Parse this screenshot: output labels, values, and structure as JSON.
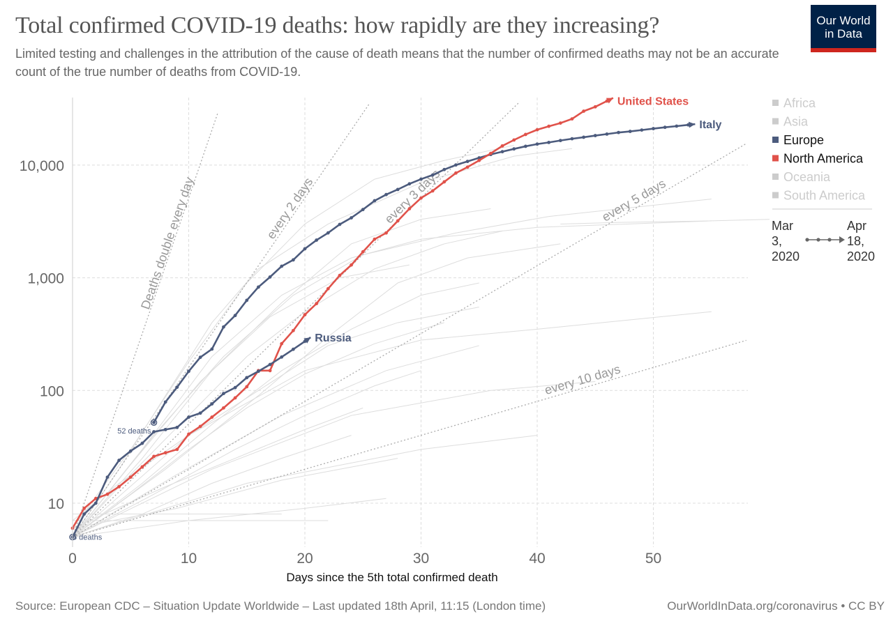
{
  "header": {
    "title": "Total confirmed COVID-19 deaths: how rapidly are they increasing?",
    "subtitle": "Limited testing and challenges in the attribution of the cause of death means that the number of confirmed deaths may not be an accurate count of the true number of deaths from COVID-19.",
    "logo_text": "Our World in Data"
  },
  "footer": {
    "source": "Source: European CDC – Situation Update Worldwide – Last updated 18th April, 11:15 (London time)",
    "credit": "OurWorldInData.org/coronavirus • CC BY"
  },
  "legend": {
    "items": [
      {
        "label": "Africa",
        "color": "#cccccc",
        "active": false
      },
      {
        "label": "Asia",
        "color": "#cccccc",
        "active": false
      },
      {
        "label": "Europe",
        "color": "#4c5b7d",
        "active": true
      },
      {
        "label": "North America",
        "color": "#e0524a",
        "active": true
      },
      {
        "label": "Oceania",
        "color": "#cccccc",
        "active": false
      },
      {
        "label": "South America",
        "color": "#cccccc",
        "active": false
      }
    ],
    "time_start": [
      "Mar",
      "3,",
      "2020"
    ],
    "time_end": [
      "Apr",
      "18,",
      "2020"
    ]
  },
  "chart_data": {
    "type": "line",
    "title": "Total confirmed COVID-19 deaths: how rapidly are they increasing?",
    "xlabel": "Days since the 5th total confirmed death",
    "ylabel": "",
    "xlim": [
      0,
      58
    ],
    "ylim": [
      4.1,
      40000
    ],
    "y_scale": "log",
    "x_ticks": [
      "0",
      "10",
      "20",
      "30",
      "40",
      "50"
    ],
    "y_ticks": [
      "10",
      "100",
      "1,000",
      "10,000"
    ],
    "y_tick_values": [
      10,
      100,
      1000,
      10000
    ],
    "x_tick_values": [
      0,
      10,
      20,
      30,
      40,
      50
    ],
    "grid": true,
    "legend_position": "right",
    "series": [
      {
        "name": "Italy",
        "color": "#4c5b7d",
        "start_label": "52 deaths",
        "x": [
          7,
          8,
          9,
          10,
          11,
          12,
          13,
          14,
          15,
          16,
          17,
          18,
          19,
          20,
          21,
          22,
          23,
          24,
          25,
          26,
          27,
          28,
          29,
          30,
          31,
          32,
          33,
          34,
          35,
          36,
          37,
          38,
          39,
          40,
          41,
          42,
          43,
          44,
          45,
          46,
          47,
          48,
          49,
          50,
          51,
          52,
          53
        ],
        "y": [
          52,
          79,
          107,
          148,
          197,
          233,
          366,
          463,
          631,
          827,
          1016,
          1266,
          1441,
          1809,
          2158,
          2503,
          2978,
          3405,
          4032,
          4825,
          5476,
          6077,
          6820,
          7503,
          8165,
          9134,
          10023,
          10779,
          11591,
          12428,
          13155,
          13915,
          14681,
          15362,
          15887,
          16523,
          17127,
          17669,
          18279,
          18849,
          19468,
          19899,
          20465,
          21067,
          21645,
          22170,
          22745
        ]
      },
      {
        "name": "United States",
        "color": "#e0524a",
        "start_label": "",
        "x": [
          0,
          1,
          2,
          3,
          4,
          5,
          6,
          7,
          8,
          9,
          10,
          11,
          12,
          13,
          14,
          15,
          16,
          17,
          18,
          19,
          20,
          21,
          22,
          23,
          24,
          25,
          26,
          27,
          28,
          29,
          30,
          31,
          32,
          33,
          34,
          35,
          36,
          37,
          38,
          39,
          40,
          41,
          42,
          43,
          44,
          45,
          46
        ],
        "y": [
          6,
          9,
          11,
          12,
          14,
          17,
          21,
          26,
          28,
          30,
          41,
          48,
          58,
          70,
          86,
          108,
          150,
          150,
          260,
          340,
          470,
          590,
          800,
          1050,
          1300,
          1700,
          2200,
          2500,
          3200,
          4100,
          5100,
          5900,
          7100,
          8500,
          9600,
          11000,
          12700,
          14800,
          16700,
          18700,
          20600,
          22100,
          23600,
          25700,
          30100,
          32900,
          37000
        ]
      },
      {
        "name": "Russia",
        "color": "#4c5b7d",
        "start_label": "5 deaths",
        "x": [
          0,
          1,
          2,
          3,
          4,
          5,
          6,
          7,
          8,
          9,
          10,
          11,
          12,
          13,
          14,
          15,
          16,
          17,
          18,
          19,
          20
        ],
        "y": [
          5,
          8,
          10,
          17,
          24,
          29,
          34,
          43,
          45,
          47,
          58,
          63,
          76,
          94,
          106,
          130,
          148,
          170,
          198,
          232,
          273
        ]
      }
    ],
    "doubling_lines": [
      {
        "label": "Deaths double every day",
        "days": 1,
        "end_day": 13
      },
      {
        "label": "every 2 days",
        "days": 2,
        "end_day": 26
      },
      {
        "label": "every 3 days",
        "days": 3,
        "end_day": 38.5
      },
      {
        "label": "every 5 days",
        "days": 5,
        "end_day": 58
      },
      {
        "label": "every 10 days",
        "days": 10,
        "end_day": 58
      }
    ],
    "background_series": [
      [
        [
          0,
          5
        ],
        [
          4,
          20
        ],
        [
          8,
          90
        ],
        [
          12,
          400
        ],
        [
          16,
          1200
        ],
        [
          22,
          3000
        ],
        [
          30,
          7000
        ],
        [
          38,
          12000
        ],
        [
          43,
          14000
        ]
      ],
      [
        [
          0,
          6
        ],
        [
          5,
          30
        ],
        [
          10,
          180
        ],
        [
          15,
          900
        ],
        [
          20,
          3000
        ],
        [
          26,
          7500
        ],
        [
          32,
          11000
        ],
        [
          38,
          15000
        ]
      ],
      [
        [
          0,
          5
        ],
        [
          6,
          25
        ],
        [
          12,
          150
        ],
        [
          18,
          600
        ],
        [
          24,
          2000
        ],
        [
          30,
          3300
        ],
        [
          36,
          4100
        ]
      ],
      [
        [
          0,
          5
        ],
        [
          5,
          18
        ],
        [
          10,
          60
        ],
        [
          15,
          200
        ],
        [
          20,
          500
        ],
        [
          26,
          1200
        ],
        [
          32,
          2000
        ],
        [
          37,
          2600
        ]
      ],
      [
        [
          0,
          5
        ],
        [
          6,
          15
        ],
        [
          12,
          50
        ],
        [
          18,
          150
        ],
        [
          24,
          350
        ],
        [
          30,
          700
        ],
        [
          35,
          900
        ]
      ],
      [
        [
          0,
          7
        ],
        [
          4,
          15
        ],
        [
          10,
          40
        ],
        [
          16,
          100
        ],
        [
          22,
          250
        ],
        [
          28,
          400
        ],
        [
          35,
          550
        ]
      ],
      [
        [
          0,
          5
        ],
        [
          5,
          12
        ],
        [
          10,
          30
        ],
        [
          15,
          70
        ],
        [
          20,
          140
        ],
        [
          26,
          260
        ],
        [
          32,
          400
        ]
      ],
      [
        [
          0,
          5
        ],
        [
          7,
          12
        ],
        [
          14,
          30
        ],
        [
          20,
          60
        ],
        [
          26,
          110
        ],
        [
          30,
          150
        ]
      ],
      [
        [
          0,
          6
        ],
        [
          8,
          14
        ],
        [
          14,
          25
        ],
        [
          20,
          45
        ],
        [
          25,
          70
        ]
      ],
      [
        [
          0,
          5
        ],
        [
          6,
          8
        ],
        [
          12,
          15
        ],
        [
          18,
          25
        ],
        [
          24,
          40
        ]
      ],
      [
        [
          0,
          5
        ],
        [
          10,
          7
        ],
        [
          20,
          9
        ],
        [
          27,
          11
        ]
      ],
      [
        [
          0,
          8
        ],
        [
          10,
          8
        ],
        [
          18,
          8
        ]
      ],
      [
        [
          0,
          7
        ],
        [
          12,
          7
        ],
        [
          22,
          7
        ]
      ],
      [
        [
          0,
          6
        ],
        [
          9,
          9
        ],
        [
          18,
          16
        ],
        [
          28,
          25
        ]
      ],
      [
        [
          0,
          5
        ],
        [
          8,
          20
        ],
        [
          16,
          90
        ],
        [
          22,
          300
        ],
        [
          28,
          900
        ],
        [
          34,
          1500
        ],
        [
          42,
          2000
        ]
      ],
      [
        [
          0,
          5
        ],
        [
          6,
          30
        ],
        [
          12,
          200
        ],
        [
          18,
          700
        ],
        [
          24,
          1500
        ],
        [
          30,
          2200
        ],
        [
          40,
          2800
        ],
        [
          55,
          3200
        ]
      ],
      [
        [
          42,
          3000
        ],
        [
          47,
          3100
        ],
        [
          55,
          3200
        ],
        [
          60,
          3300
        ]
      ],
      [
        [
          0,
          5
        ],
        [
          10,
          40
        ],
        [
          20,
          150
        ],
        [
          30,
          280
        ],
        [
          40,
          350
        ],
        [
          55,
          500
        ]
      ],
      [
        [
          0,
          5
        ],
        [
          12,
          20
        ],
        [
          24,
          60
        ],
        [
          36,
          100
        ],
        [
          45,
          120
        ]
      ],
      [
        [
          0,
          5
        ],
        [
          15,
          15
        ],
        [
          30,
          30
        ],
        [
          40,
          40
        ]
      ],
      [
        [
          0,
          5
        ],
        [
          7,
          40
        ],
        [
          13,
          200
        ],
        [
          19,
          700
        ],
        [
          25,
          1600
        ],
        [
          33,
          2500
        ],
        [
          41,
          3500
        ],
        [
          55,
          5000
        ]
      ],
      [
        [
          0,
          5
        ],
        [
          5,
          22
        ],
        [
          11,
          120
        ],
        [
          17,
          450
        ],
        [
          23,
          1000
        ],
        [
          29,
          1300
        ]
      ],
      [
        [
          0,
          5
        ],
        [
          9,
          18
        ],
        [
          18,
          60
        ],
        [
          27,
          150
        ],
        [
          35,
          250
        ]
      ]
    ]
  }
}
